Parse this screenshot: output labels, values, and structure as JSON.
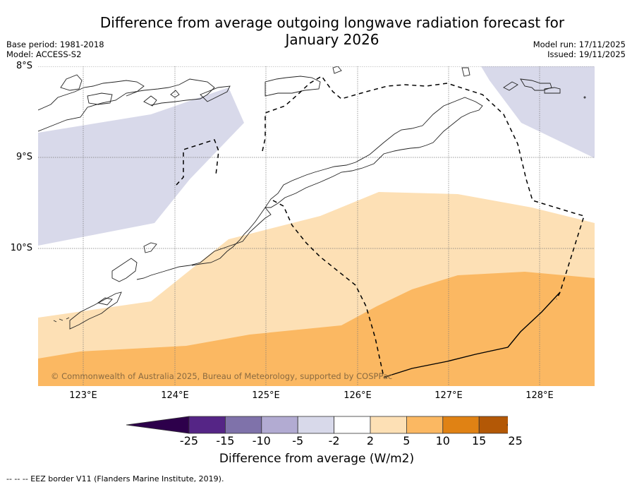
{
  "header": {
    "title_line1": "Difference from average outgoing longwave radiation forecast for",
    "title_line2": "January 2026",
    "base_period": "Base period: 1981-2018",
    "model": "Model: ACCESS-S2",
    "model_run": "Model run: 17/11/2025",
    "issued": "Issued: 19/11/2025"
  },
  "map": {
    "lat_labels": [
      "8°S",
      "9°S",
      "10°S"
    ],
    "lon_labels": [
      "123°E",
      "124°E",
      "125°E",
      "126°E",
      "127°E",
      "128°E"
    ],
    "extent": {
      "lon_min": 122.5,
      "lon_max": 128.6,
      "lat_min": -11.5,
      "lat_max": -8.0
    },
    "copyright": "© Commonwealth of Australia 2025, Bureau of Meteorology, supported by COSPPac",
    "regions": [
      {
        "category": "-5 to -2",
        "color": "#d8d9ea"
      },
      {
        "category": "2 to 5",
        "color": "#fde0b5"
      },
      {
        "category": "5 to 10",
        "color": "#fbb862"
      }
    ],
    "features": [
      "coastline",
      "eez-border"
    ]
  },
  "colorbar": {
    "label": "Difference from average (W/m2)",
    "ticks": [
      "-25",
      "-15",
      "-10",
      "-5",
      "-2",
      "2",
      "5",
      "10",
      "15",
      "25"
    ],
    "colors": [
      "#552586",
      "#7f72aa",
      "#b2abd2",
      "#d8d9ea",
      "#ffffff",
      "#fde0b5",
      "#fbb862",
      "#e08214",
      "#b35806"
    ],
    "under_color": "#2d004b",
    "over_color": "#7f3b08"
  },
  "footer": {
    "eez_note": "--  --  -- EEZ border V11 (Flanders Marine Institute, 2019)."
  }
}
